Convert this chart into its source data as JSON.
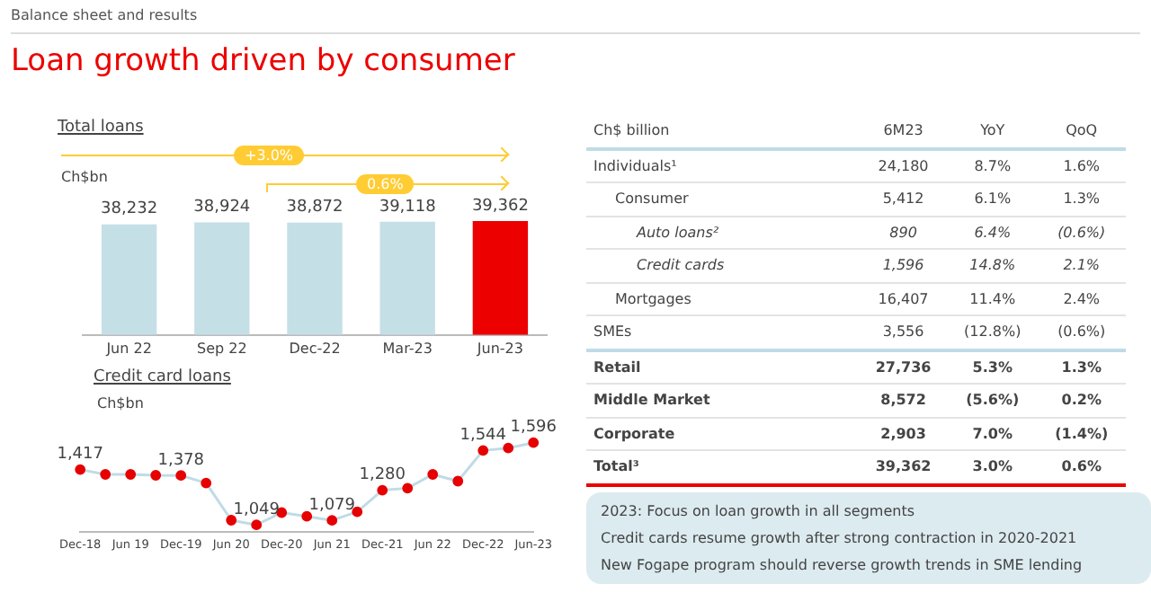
{
  "chart_data": [
    {
      "type": "other",
      "title": "Loan growth driven by consumer",
      "subtitle": "Balance sheet and results"
    },
    {
      "type": "bar",
      "title": "Total loans",
      "ylabel": "Ch$bn",
      "categories": [
        "Jun 22",
        "Sep 22",
        "Dec-22",
        "Mar-23",
        "Jun-23"
      ],
      "values": [
        38232,
        38924,
        38872,
        39118,
        39362
      ],
      "colors": [
        "#c5dfe7",
        "#c5dfe7",
        "#c5dfe7",
        "#c5dfe7",
        "#ec0000"
      ],
      "value_labels": [
        "38,232",
        "38,924",
        "38,872",
        "39,118",
        "39,362"
      ],
      "tick_labels": "x",
      "grid": false,
      "annotations": [
        "+3.0%",
        "0.6%"
      ]
    },
    {
      "type": "line",
      "title": "Credit card loans",
      "ylabel": "Ch$bn",
      "categories": [
        "Dec-18",
        null,
        "Jun 19",
        null,
        "Dec-19",
        null,
        "Jun 20",
        null,
        "Dec-20",
        null,
        "Jun 21",
        null,
        "Dec-21",
        null,
        "Jun 22",
        null,
        "Dec-22",
        null,
        "Jun-23"
      ],
      "values": [
        1417,
        1385,
        1385,
        1379,
        1378,
        1327,
        1080,
        1049,
        1131,
        1106,
        1079,
        1136,
        1280,
        1293,
        1385,
        1340,
        1544,
        1560,
        1596
      ],
      "value_labels": [
        "1,417",
        null,
        null,
        null,
        "1,378",
        null,
        null,
        "1,049",
        null,
        null,
        "1,079",
        null,
        "1,280",
        null,
        null,
        null,
        "1,544",
        null,
        "1,596"
      ],
      "color": "#bfdce6",
      "colors": [
        "#e60000",
        "#e60000",
        "#e60000",
        "#e60000",
        "#e60000",
        "#e60000",
        "#e60000",
        "#e60000",
        "#e60000",
        "#e60000",
        "#e60000",
        "#e60000",
        "#e60000",
        "#e60000",
        "#e60000",
        "#e60000",
        "#e60000",
        "#e60000",
        "#e60000"
      ],
      "marker": "circle",
      "tick_labels": "x",
      "grid": false
    },
    {
      "type": "other",
      "title": "Ch$ billion",
      "categories": [
        "Individuals¹",
        "Consumer",
        "Auto loans²",
        "Credit cards",
        "Mortgages",
        "SMEs",
        "Retail",
        "Middle Market",
        "Corporate",
        "Total³"
      ],
      "series": [
        {
          "name": "6M23",
          "values": [
            24180,
            5412,
            890,
            1596,
            16407,
            3556,
            27736,
            8572,
            2903,
            39362
          ],
          "value_labels": [
            "24,180",
            "5,412",
            "890",
            "1,596",
            "16,407",
            "3,556",
            "27,736",
            "8,572",
            "2,903",
            "39,362"
          ]
        },
        {
          "name": "YoY",
          "values": [
            8.7,
            6.1,
            6.4,
            14.8,
            11.4,
            -12.8,
            5.3,
            -5.6,
            7.0,
            3.0
          ],
          "value_labels": [
            "8.7%",
            "6.1%",
            "6.4%",
            "14.8%",
            "11.4%",
            "(12.8%)",
            "5.3%",
            "(5.6%)",
            "7.0%",
            "3.0%"
          ]
        },
        {
          "name": "QoQ",
          "values": [
            1.6,
            1.3,
            -0.6,
            2.1,
            2.4,
            -0.6,
            1.3,
            0.2,
            -1.4,
            0.6
          ],
          "value_labels": [
            "1.6%",
            "1.3%",
            "(0.6%)",
            "2.1%",
            "2.4%",
            "(0.6%)",
            "1.3%",
            "0.2%",
            "(1.4%)",
            "0.6%"
          ]
        }
      ],
      "annotations": [
        "2023: Focus on loan growth in all segments",
        "Credit cards resume growth after strong contraction in 2020-2021",
        "New Fogape program should reverse growth trends in SME lending"
      ]
    }
  ]
}
